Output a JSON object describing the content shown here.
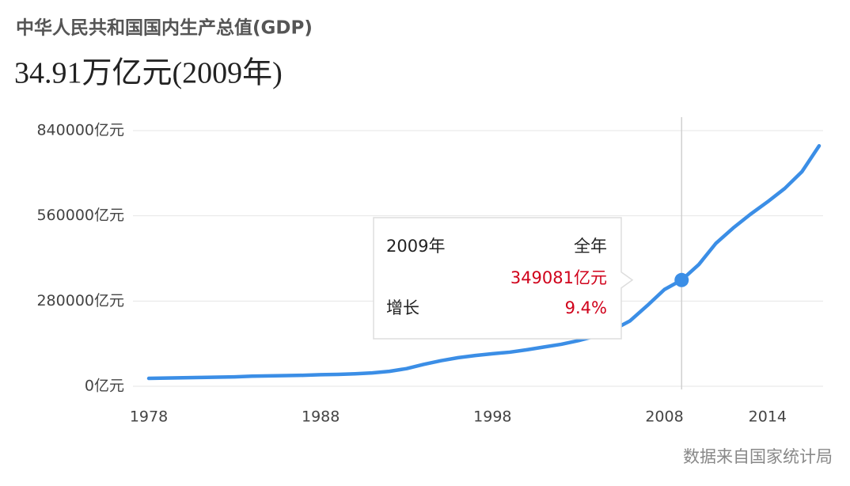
{
  "chart_data": {
    "type": "line",
    "title": "中华人民共和国国内生产总值(GDP)",
    "headline": "34.91万亿元(2009年)",
    "source": "数据来自国家统计局",
    "x": [
      1978,
      1979,
      1980,
      1981,
      1982,
      1983,
      1984,
      1985,
      1986,
      1987,
      1988,
      1989,
      1990,
      1991,
      1992,
      1993,
      1994,
      1995,
      1996,
      1997,
      1998,
      1999,
      2000,
      2001,
      2002,
      2003,
      2004,
      2005,
      2006,
      2007,
      2008,
      2009,
      2010,
      2011,
      2012,
      2013,
      2014,
      2015,
      2016,
      2017
    ],
    "values": [
      26000,
      27000,
      28000,
      29000,
      30000,
      31000,
      33000,
      34000,
      35000,
      36000,
      38000,
      39000,
      41000,
      44000,
      49000,
      58000,
      72000,
      84000,
      94000,
      101000,
      107000,
      112000,
      120000,
      129000,
      138000,
      150000,
      165000,
      185000,
      215000,
      265000,
      318000,
      349081,
      400000,
      470000,
      520000,
      565000,
      606000,
      650000,
      705000,
      790000
    ],
    "color": "#3b8ee6",
    "xlim": [
      1978,
      2017
    ],
    "xticks": [
      1978,
      1988,
      1998,
      2008,
      2014
    ],
    "ylim": [
      0,
      840000
    ],
    "yticks": [
      {
        "value": 0,
        "label": "0亿元"
      },
      {
        "value": 280000,
        "label": "280000亿元"
      },
      {
        "value": 560000,
        "label": "560000亿元"
      },
      {
        "value": 840000,
        "label": "840000亿元"
      }
    ],
    "grid": true,
    "highlight_x": 2009,
    "tooltip": {
      "year_label": "2009年",
      "period": "全年",
      "value_label": "349081亿元",
      "growth_name": "增长",
      "growth": "9.4%"
    }
  }
}
